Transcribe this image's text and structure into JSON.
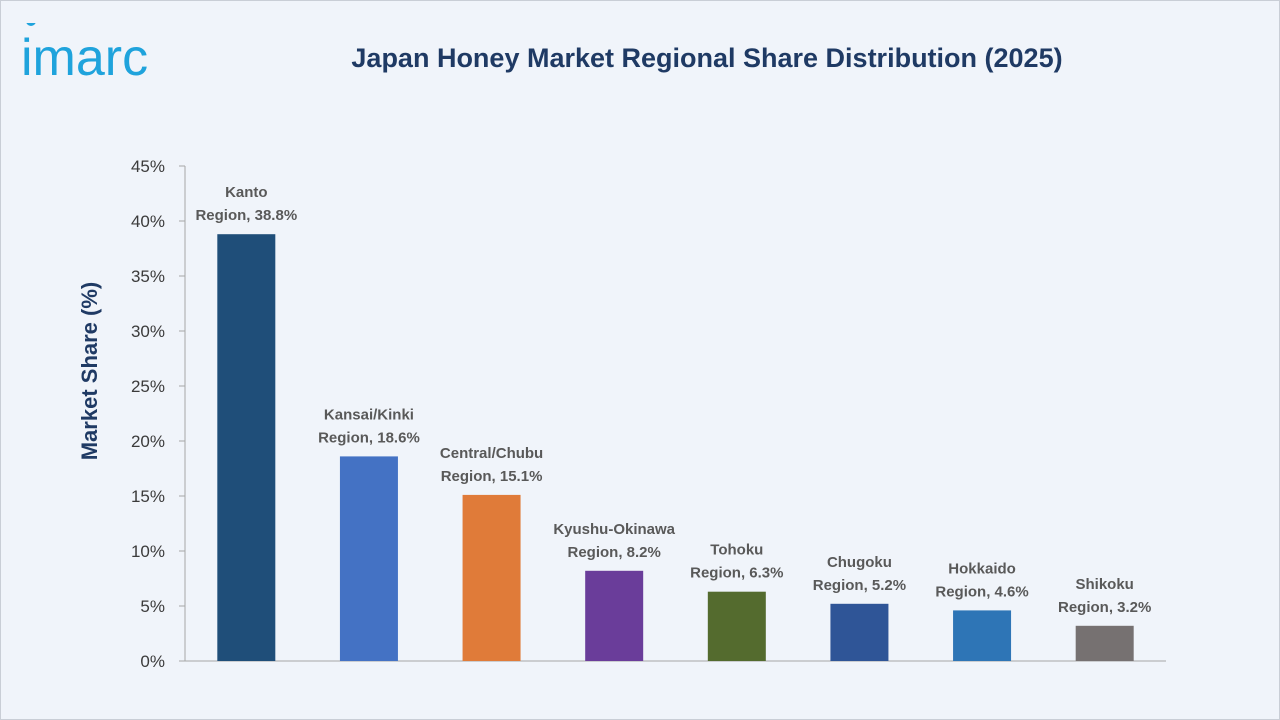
{
  "logo": {
    "text": "imarc"
  },
  "title": "Japan Honey Market Regional Share Distribution (2025)",
  "chart_data": {
    "type": "bar",
    "title": "Japan Honey Market Regional Share Distribution (2025)",
    "ylabel": "Market Share (%)",
    "xlabel": "",
    "ylim": [
      0,
      45
    ],
    "yticks": [
      0,
      5,
      10,
      15,
      20,
      25,
      30,
      35,
      40,
      45
    ],
    "ytick_labels": [
      "0%",
      "5%",
      "10%",
      "15%",
      "20%",
      "25%",
      "30%",
      "35%",
      "40%",
      "45%"
    ],
    "grid": false,
    "legend": "none",
    "categories": [
      "Kanto Region",
      "Kansai/Kinki Region",
      "Central/Chubu Region",
      "Kyushu-Okinawa Region",
      "Tohoku Region",
      "Chugoku Region",
      "Hokkaido Region",
      "Shikoku Region"
    ],
    "values": [
      38.8,
      18.6,
      15.1,
      8.2,
      6.3,
      5.2,
      4.6,
      3.2
    ],
    "data_labels": [
      [
        "Kanto",
        "Region, 38.8%"
      ],
      [
        "Kansai/Kinki",
        "Region, 18.6%"
      ],
      [
        "Central/Chubu",
        "Region, 15.1%"
      ],
      [
        "Kyushu-Okinawa",
        "Region, 8.2%"
      ],
      [
        "Tohoku",
        "Region, 6.3%"
      ],
      [
        "Chugoku",
        "Region, 5.2%"
      ],
      [
        "Hokkaido",
        "Region, 4.6%"
      ],
      [
        "Shikoku",
        "Region, 3.2%"
      ]
    ],
    "colors": [
      "#1f4e79",
      "#4472c4",
      "#e07b39",
      "#6a3d9a",
      "#546b2e",
      "#2f5597",
      "#2e75b6",
      "#767171"
    ],
    "axis_color": "#a6a6a6"
  }
}
